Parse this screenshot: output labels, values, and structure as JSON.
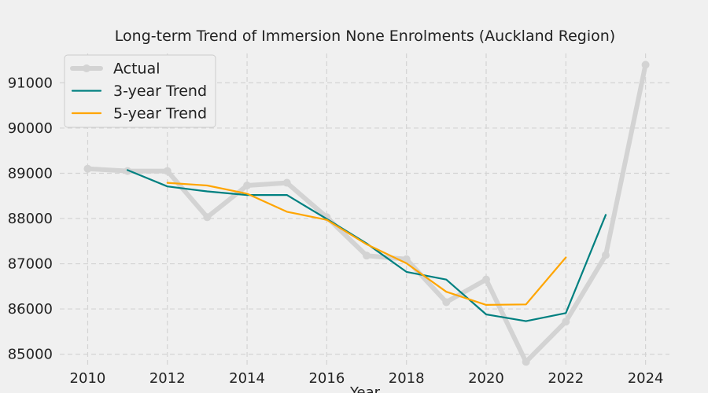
{
  "chart_data": {
    "type": "line",
    "title": "Long-term Trend of Immersion None Enrolments (Auckland Region)",
    "xlabel": "Year",
    "ylabel": "",
    "xlim": [
      2009.3,
      2024.6
    ],
    "ylim": [
      84750,
      91650
    ],
    "x_ticks": [
      2010,
      2012,
      2014,
      2016,
      2018,
      2020,
      2022,
      2024
    ],
    "y_ticks": [
      85000,
      86000,
      87000,
      88000,
      89000,
      90000,
      91000
    ],
    "grid": true,
    "legend_position": "top-left",
    "series": [
      {
        "name": "Actual",
        "color": "#d3d3d3",
        "markers": true,
        "points": [
          [
            2010,
            89100
          ],
          [
            2011,
            89050
          ],
          [
            2012,
            89050
          ],
          [
            2013,
            88030
          ],
          [
            2014,
            88730
          ],
          [
            2015,
            88790
          ],
          [
            2016,
            88030
          ],
          [
            2017,
            87180
          ],
          [
            2018,
            87100
          ],
          [
            2019,
            86150
          ],
          [
            2020,
            86650
          ],
          [
            2021,
            84830
          ],
          [
            2022,
            85720
          ],
          [
            2023,
            87190
          ],
          [
            2024,
            91400
          ]
        ]
      },
      {
        "name": "3-year Trend",
        "color": "#008080",
        "markers": false,
        "points": [
          [
            2011,
            89070
          ],
          [
            2012,
            88710
          ],
          [
            2013,
            88600
          ],
          [
            2014,
            88520
          ],
          [
            2015,
            88520
          ],
          [
            2016,
            87990
          ],
          [
            2017,
            87450
          ],
          [
            2018,
            86820
          ],
          [
            2019,
            86650
          ],
          [
            2020,
            85880
          ],
          [
            2021,
            85730
          ],
          [
            2022,
            85910
          ],
          [
            2023,
            88080
          ]
        ]
      },
      {
        "name": "5-year Trend",
        "color": "#ffa500",
        "markers": false,
        "points": [
          [
            2012,
            88790
          ],
          [
            2013,
            88730
          ],
          [
            2014,
            88550
          ],
          [
            2015,
            88150
          ],
          [
            2016,
            87970
          ],
          [
            2017,
            87430
          ],
          [
            2018,
            87010
          ],
          [
            2019,
            86380
          ],
          [
            2020,
            86090
          ],
          [
            2021,
            86100
          ],
          [
            2022,
            87140
          ]
        ]
      }
    ]
  }
}
